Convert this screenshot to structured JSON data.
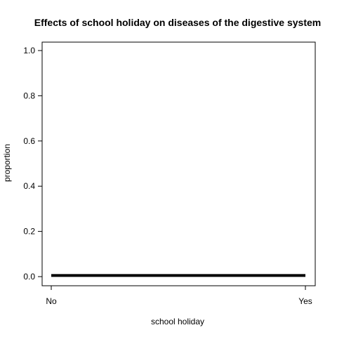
{
  "chart_data": {
    "type": "line",
    "title": "Effects of school holiday on diseases of the digestive system",
    "xlabel": "school holiday",
    "ylabel": "proportion",
    "categories": [
      "No",
      "Yes"
    ],
    "series": [
      {
        "values": [
          0.005,
          0.005
        ],
        "color": "#000000"
      }
    ],
    "ylim": [
      0,
      1
    ],
    "yticks": [
      "0.0",
      "0.2",
      "0.4",
      "0.6",
      "0.8",
      "1.0"
    ],
    "grid": false,
    "legend": "none"
  }
}
